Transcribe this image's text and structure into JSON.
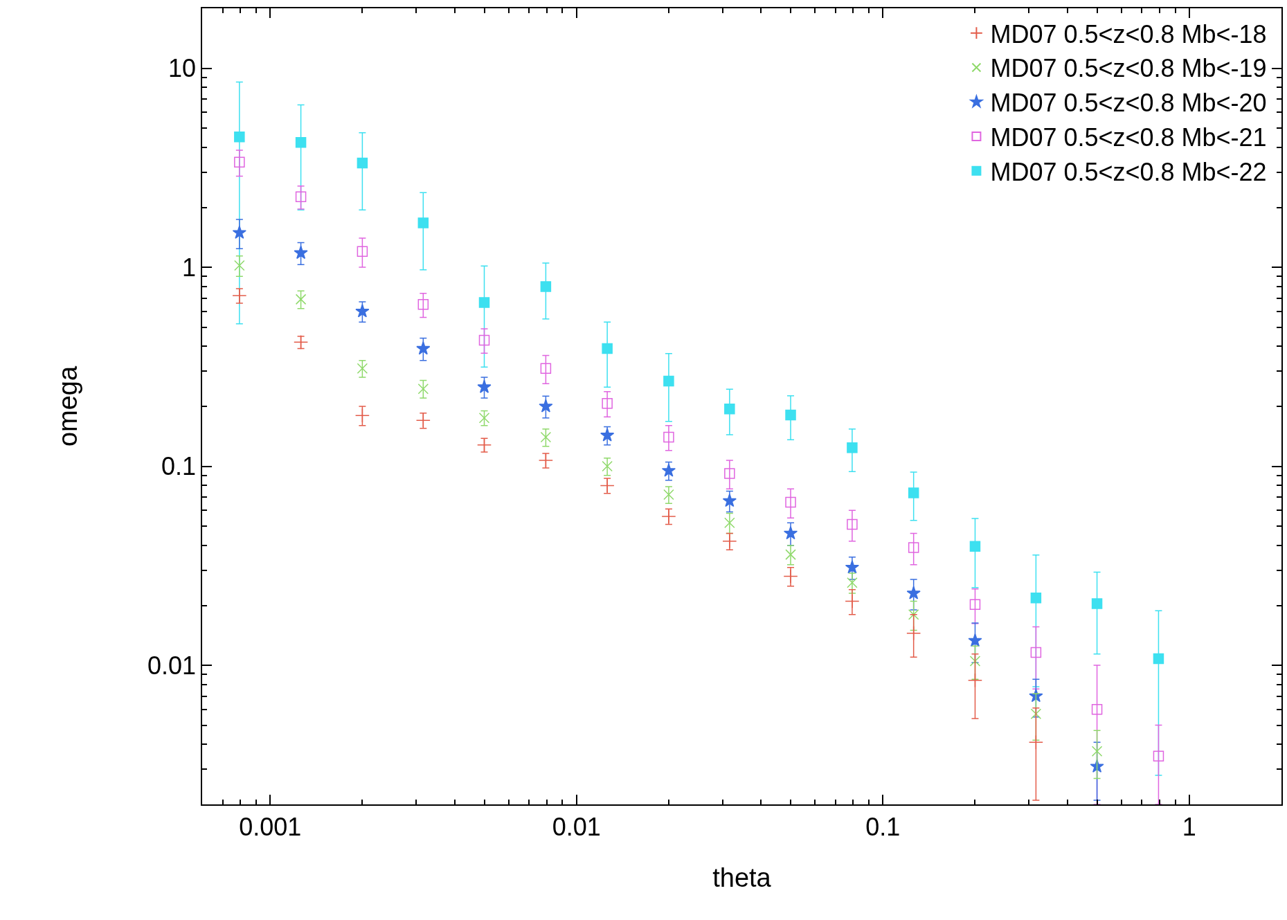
{
  "chart_data": {
    "type": "scatter",
    "xlabel": "theta",
    "ylabel": "omega",
    "x": [
      0.000794,
      0.00126,
      0.002,
      0.00316,
      0.005,
      0.00794,
      0.0126,
      0.02,
      0.0316,
      0.05,
      0.0794,
      0.126,
      0.2,
      0.316,
      0.5,
      0.794
    ],
    "series": [
      {
        "name": "MD07 0.5<z<0.8 Mb<-18",
        "color": "#e35c4a",
        "marker": "cross",
        "values": [
          0.72,
          0.42,
          0.18,
          0.17,
          0.128,
          0.107,
          0.08,
          0.056,
          0.042,
          0.028,
          0.021,
          0.0145,
          0.0084,
          0.0041,
          null,
          null
        ],
        "errors": [
          0.06,
          0.03,
          0.02,
          0.015,
          0.01,
          0.009,
          0.007,
          0.005,
          0.004,
          0.003,
          0.003,
          0.0035,
          0.003,
          0.002,
          null,
          null
        ]
      },
      {
        "name": "MD07 0.5<z<0.8 Mb<-19",
        "color": "#8fd96b",
        "marker": "x",
        "values": [
          1.02,
          0.69,
          0.31,
          0.245,
          0.175,
          0.14,
          0.1,
          0.072,
          0.052,
          0.036,
          0.026,
          0.018,
          0.0105,
          0.0057,
          0.0037,
          null
        ],
        "errors": [
          0.12,
          0.07,
          0.03,
          0.025,
          0.015,
          0.014,
          0.01,
          0.007,
          0.006,
          0.004,
          0.003,
          0.003,
          0.002,
          0.0015,
          0.001,
          null
        ]
      },
      {
        "name": "MD07 0.5<z<0.8 Mb<-20",
        "color": "#3a6fe0",
        "marker": "star",
        "values": [
          1.49,
          1.18,
          0.6,
          0.39,
          0.25,
          0.2,
          0.143,
          0.095,
          0.067,
          0.046,
          0.031,
          0.023,
          0.0133,
          0.007,
          0.0031,
          null
        ],
        "errors": [
          0.25,
          0.15,
          0.07,
          0.05,
          0.03,
          0.025,
          0.015,
          0.01,
          0.008,
          0.006,
          0.004,
          0.004,
          0.003,
          0.0015,
          0.001,
          null
        ]
      },
      {
        "name": "MD07 0.5<z<0.8 Mb<-21",
        "color": "#e065e0",
        "marker": "square-open",
        "values": [
          3.37,
          2.26,
          1.2,
          0.65,
          0.43,
          0.31,
          0.207,
          0.14,
          0.092,
          0.066,
          0.051,
          0.039,
          0.0202,
          0.0116,
          0.006,
          0.0035
        ],
        "errors": [
          0.5,
          0.3,
          0.2,
          0.09,
          0.06,
          0.05,
          0.03,
          0.02,
          0.015,
          0.011,
          0.009,
          0.007,
          0.004,
          0.004,
          0.004,
          0.0015
        ]
      },
      {
        "name": "MD07 0.5<z<0.8 Mb<-22",
        "color": "#3de0f0",
        "marker": "square",
        "values": [
          4.52,
          4.24,
          3.34,
          1.67,
          0.665,
          0.8,
          0.39,
          0.268,
          0.194,
          0.181,
          0.124,
          0.0735,
          0.0396,
          0.0218,
          0.0204,
          0.0108
        ],
        "errors": [
          4,
          2.3,
          1.4,
          0.7,
          0.35,
          0.25,
          0.14,
          0.1,
          0.05,
          0.045,
          0.03,
          0.02,
          0.015,
          0.014,
          0.009,
          0.008
        ]
      }
    ],
    "log": "xy",
    "xlim": [
      0.0006,
      2
    ],
    "ylim": [
      0.002,
      20
    ],
    "xticks": [
      0.001,
      0.01,
      0.1,
      1
    ],
    "yticks": [
      0.01,
      0.1,
      1,
      10
    ],
    "legend": "top right"
  }
}
